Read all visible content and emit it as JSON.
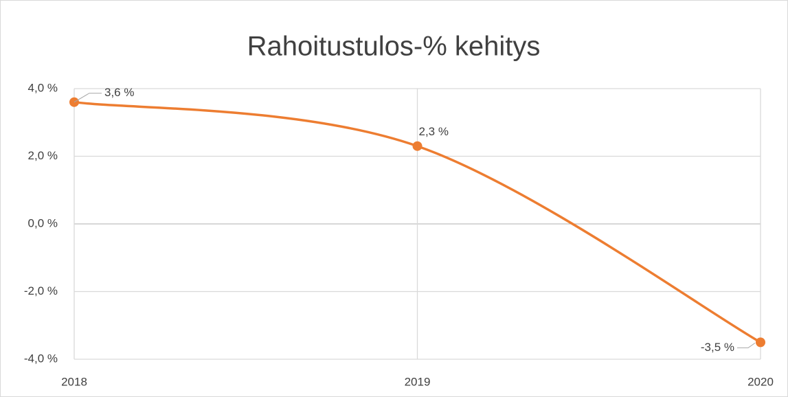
{
  "chart_data": {
    "type": "line",
    "title": "Rahoitustulos-% kehitys",
    "x": [
      2018,
      2019,
      2020
    ],
    "series": [
      {
        "name": "Rahoitustulos-%",
        "color": "#ed7d31",
        "values": [
          3.6,
          2.3,
          -3.5
        ],
        "value_labels": [
          "3,6 %",
          "2,3 %",
          "-3,5 %"
        ]
      }
    ],
    "xlim": [
      2018,
      2020
    ],
    "xticks": [
      2018,
      2019,
      2020
    ],
    "ylim": [
      -4,
      4
    ],
    "yticks": [
      {
        "value": -4,
        "label": "-4,0 %"
      },
      {
        "value": -2,
        "label": "-2,0 %"
      },
      {
        "value": 0,
        "label": "0,0 %"
      },
      {
        "value": 2,
        "label": "2,0 %"
      },
      {
        "value": 4,
        "label": "4,0 %"
      }
    ],
    "grid": true,
    "smooth": true
  }
}
